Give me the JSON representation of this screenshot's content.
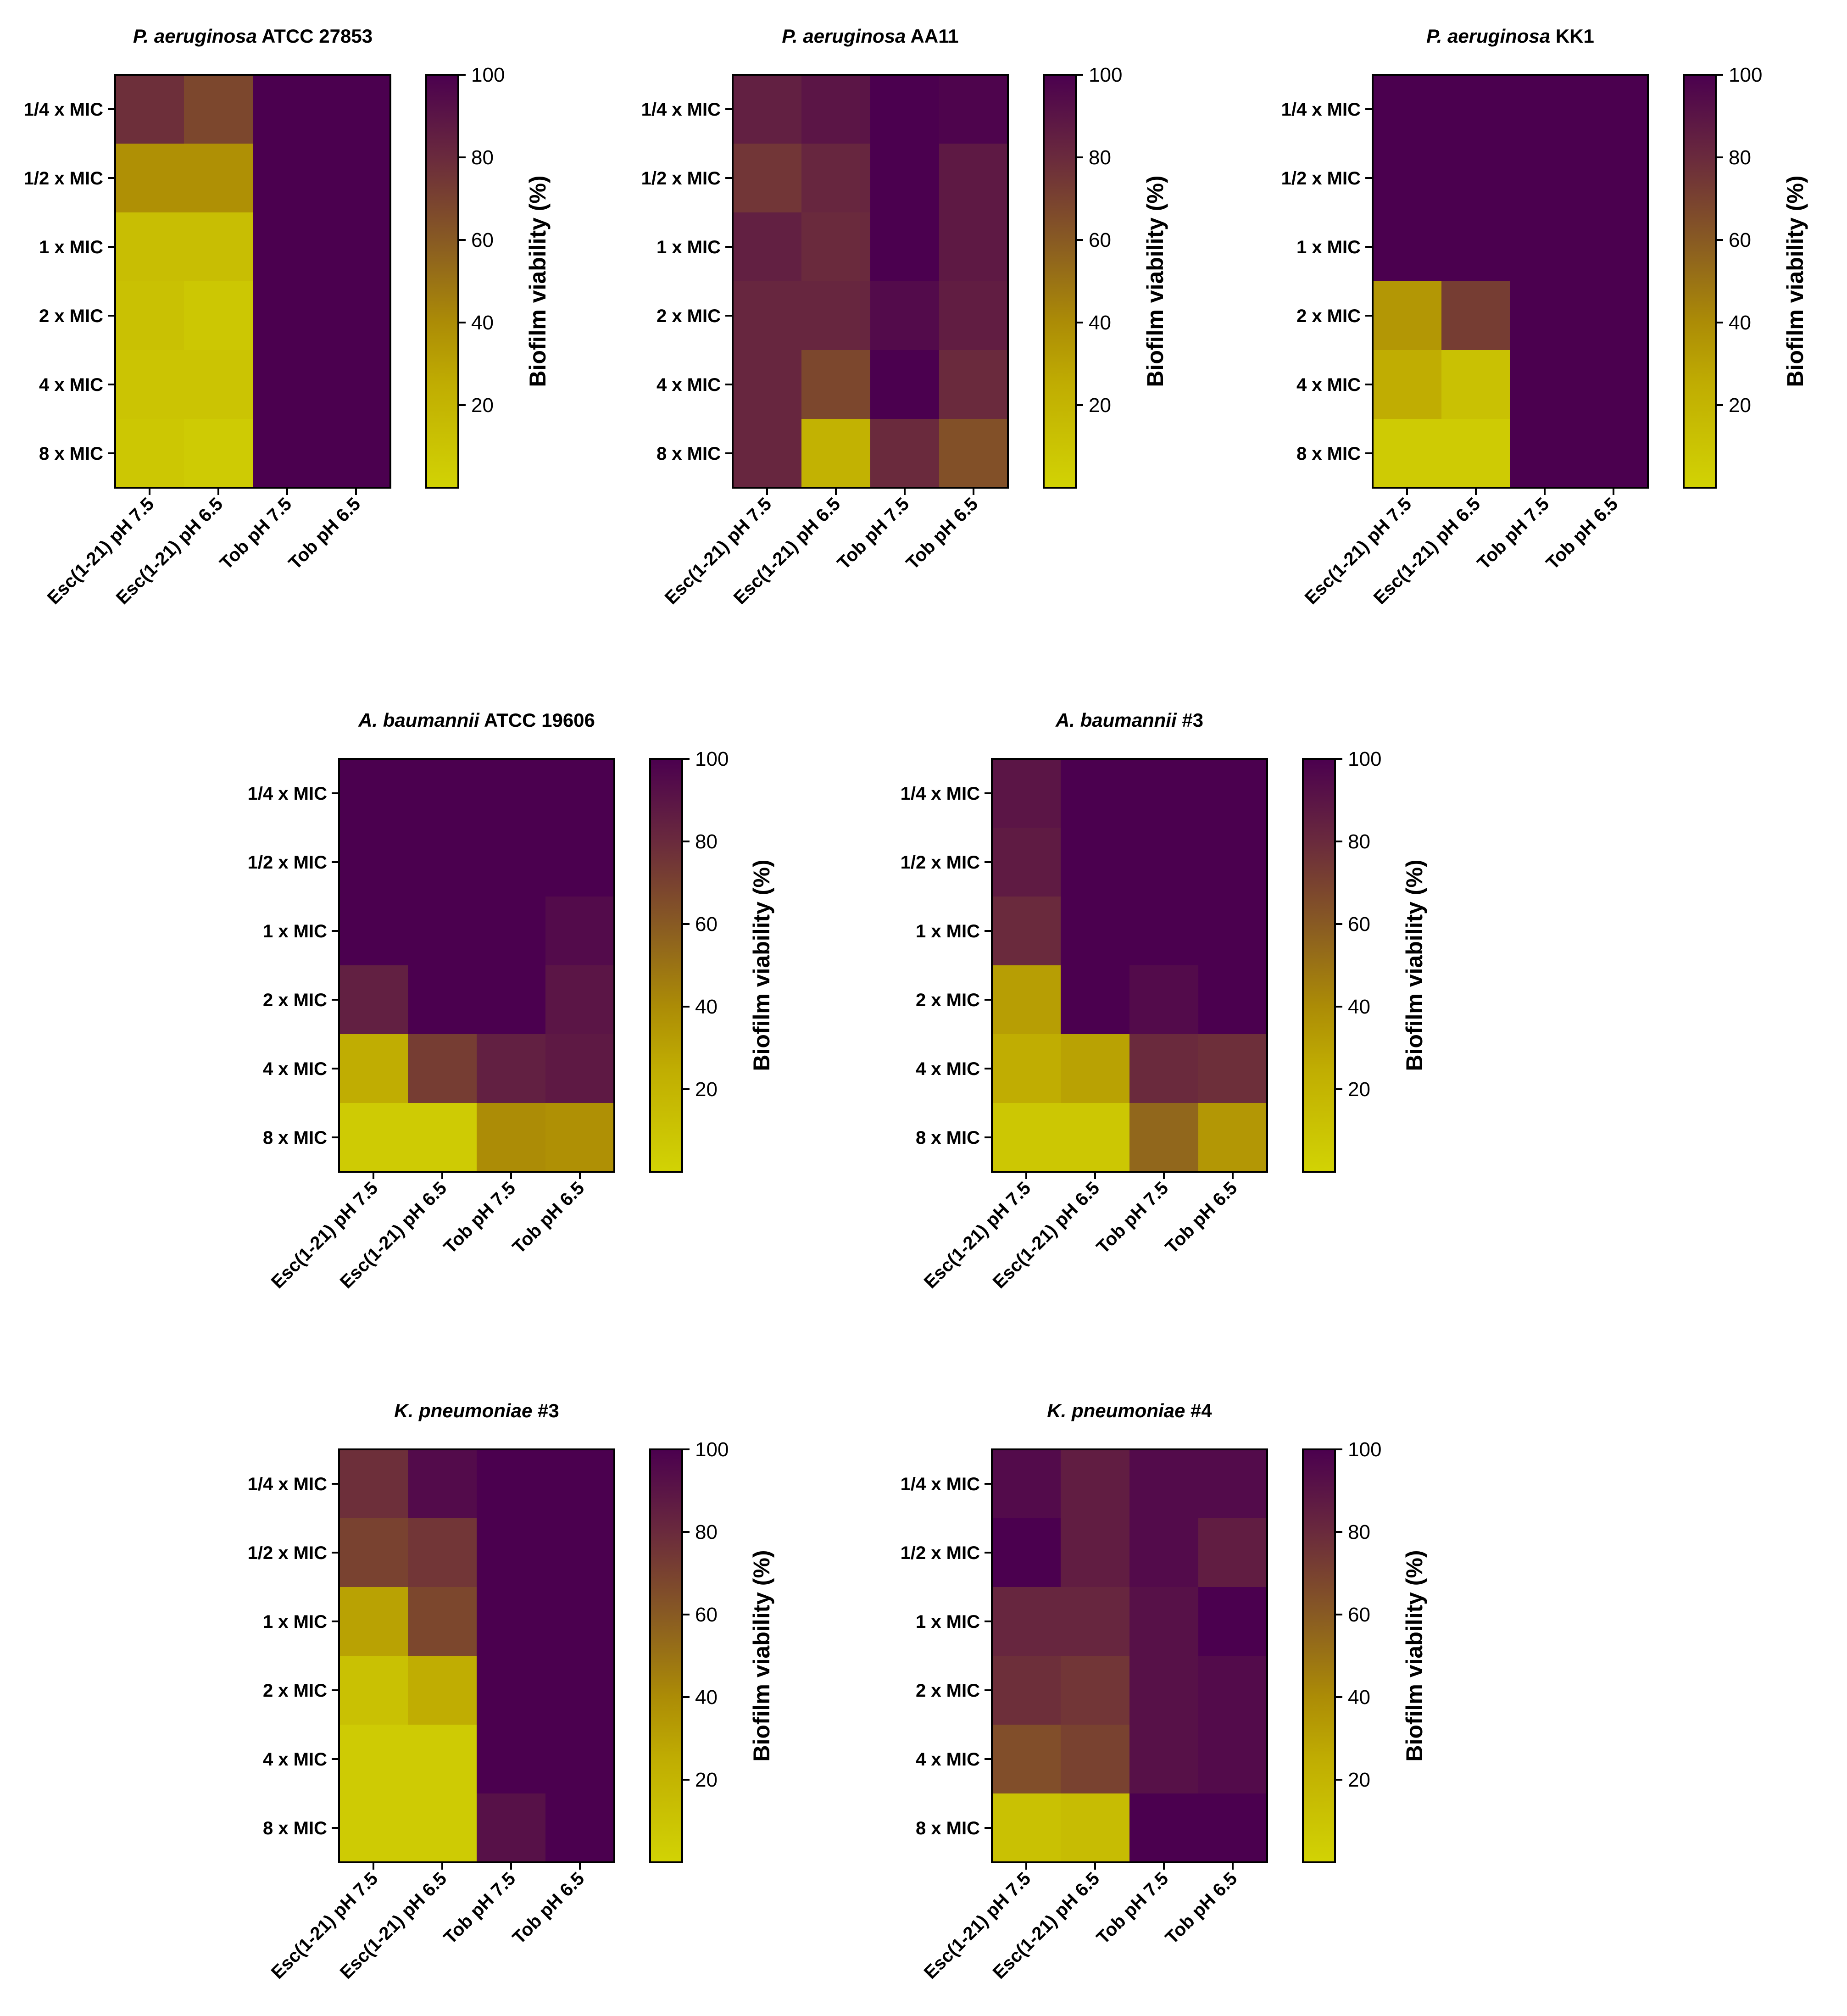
{
  "chart_data": [
    {
      "type": "heatmap",
      "title_italic": "P. aeruginosa",
      "title_rest": " ATCC 27853",
      "rows": [
        "1/4 x MIC",
        "1/2 x MIC",
        "1 x MIC",
        "2 x MIC",
        "4 x MIC",
        "8 x MIC"
      ],
      "columns": [
        "Esc(1-21) pH 7.5",
        "Esc(1-21) pH 6.5",
        "Tob pH 7.5",
        "Tob pH 6.5"
      ],
      "values": [
        [
          78,
          68,
          100,
          100
        ],
        [
          38,
          38,
          100,
          100
        ],
        [
          14,
          14,
          100,
          100
        ],
        [
          12,
          8,
          100,
          100
        ],
        [
          10,
          10,
          100,
          100
        ],
        [
          8,
          5,
          100,
          100
        ]
      ],
      "colorbar": {
        "label": "Biofilm viability (%)",
        "ticks": [
          20,
          40,
          60,
          80,
          100
        ],
        "range": [
          0,
          100
        ]
      }
    },
    {
      "type": "heatmap",
      "title_italic": "P. aeruginosa",
      "title_rest": " AA11",
      "rows": [
        "1/4 x MIC",
        "1/2 x MIC",
        "1 x MIC",
        "2 x MIC",
        "4 x MIC",
        "8 x MIC"
      ],
      "columns": [
        "Esc(1-21) pH 7.5",
        "Esc(1-21) pH 6.5",
        "Tob pH 7.5",
        "Tob pH 6.5"
      ],
      "values": [
        [
          85,
          90,
          100,
          98
        ],
        [
          75,
          82,
          100,
          88
        ],
        [
          85,
          80,
          100,
          88
        ],
        [
          82,
          82,
          95,
          86
        ],
        [
          82,
          68,
          100,
          80
        ],
        [
          82,
          22,
          80,
          64
        ]
      ],
      "colorbar": {
        "label": "Biofilm viability (%)",
        "ticks": [
          20,
          40,
          60,
          80,
          100
        ],
        "range": [
          0,
          100
        ]
      }
    },
    {
      "type": "heatmap",
      "title_italic": "P. aeruginosa",
      "title_rest": " KK1",
      "rows": [
        "1/4 x MIC",
        "1/2 x MIC",
        "1 x MIC",
        "2 x MIC",
        "4 x MIC",
        "8 x MIC"
      ],
      "columns": [
        "Esc(1-21) pH 7.5",
        "Esc(1-21) pH 6.5",
        "Tob pH 7.5",
        "Tob pH 6.5"
      ],
      "values": [
        [
          100,
          100,
          100,
          100
        ],
        [
          100,
          100,
          100,
          100
        ],
        [
          100,
          100,
          100,
          100
        ],
        [
          35,
          72,
          100,
          100
        ],
        [
          25,
          12,
          100,
          100
        ],
        [
          5,
          5,
          100,
          100
        ]
      ],
      "colorbar": {
        "label": "Biofilm viability (%)",
        "ticks": [
          20,
          40,
          60,
          80,
          100
        ],
        "range": [
          0,
          100
        ]
      }
    },
    {
      "type": "heatmap",
      "title_italic": "A. baumannii",
      "title_rest": " ATCC 19606",
      "rows": [
        "1/4 x MIC",
        "1/2 x MIC",
        "1 x MIC",
        "2 x MIC",
        "4 x MIC",
        "8 x MIC"
      ],
      "columns": [
        "Esc(1-21) pH 7.5",
        "Esc(1-21) pH 6.5",
        "Tob pH 7.5",
        "Tob pH 6.5"
      ],
      "values": [
        [
          100,
          100,
          100,
          100
        ],
        [
          100,
          100,
          100,
          100
        ],
        [
          100,
          100,
          100,
          95
        ],
        [
          85,
          100,
          100,
          90
        ],
        [
          25,
          72,
          85,
          88
        ],
        [
          5,
          5,
          40,
          38
        ]
      ],
      "colorbar": {
        "label": "Biofilm viability (%)",
        "ticks": [
          20,
          40,
          60,
          80,
          100
        ],
        "range": [
          0,
          100
        ]
      }
    },
    {
      "type": "heatmap",
      "title_italic": "A. baumannii",
      "title_rest": " #3",
      "rows": [
        "1/4 x MIC",
        "1/2 x MIC",
        "1 x MIC",
        "2 x MIC",
        "4 x MIC",
        "8 x MIC"
      ],
      "columns": [
        "Esc(1-21) pH 7.5",
        "Esc(1-21) pH 6.5",
        "Tob pH 7.5",
        "Tob pH 6.5"
      ],
      "values": [
        [
          90,
          100,
          100,
          100
        ],
        [
          87,
          100,
          100,
          100
        ],
        [
          80,
          100,
          100,
          100
        ],
        [
          32,
          100,
          95,
          100
        ],
        [
          25,
          30,
          80,
          78
        ],
        [
          8,
          8,
          55,
          35
        ]
      ],
      "colorbar": {
        "label": "Biofilm viability (%)",
        "ticks": [
          20,
          40,
          60,
          80,
          100
        ],
        "range": [
          0,
          100
        ]
      }
    },
    {
      "type": "heatmap",
      "title_italic": "K. pneumoniae",
      "title_rest": " #3",
      "rows": [
        "1/4 x MIC",
        "1/2 x MIC",
        "1 x MIC",
        "2 x MIC",
        "4 x MIC",
        "8 x MIC"
      ],
      "columns": [
        "Esc(1-21) pH 7.5",
        "Esc(1-21) pH 6.5",
        "Tob pH 7.5",
        "Tob pH 6.5"
      ],
      "values": [
        [
          78,
          95,
          100,
          100
        ],
        [
          70,
          75,
          100,
          100
        ],
        [
          30,
          68,
          100,
          100
        ],
        [
          12,
          25,
          100,
          100
        ],
        [
          5,
          5,
          100,
          100
        ],
        [
          5,
          5,
          92,
          100
        ]
      ],
      "colorbar": {
        "label": "Biofilm viability (%)",
        "ticks": [
          20,
          40,
          60,
          80,
          100
        ],
        "range": [
          0,
          100
        ]
      }
    },
    {
      "type": "heatmap",
      "title_italic": "K. pneumoniae",
      "title_rest": " #4",
      "rows": [
        "1/4 x MIC",
        "1/2 x MIC",
        "1 x MIC",
        "2 x MIC",
        "4 x MIC",
        "8 x MIC"
      ],
      "columns": [
        "Esc(1-21) pH 7.5",
        "Esc(1-21) pH 6.5",
        "Tob pH 7.5",
        "Tob pH 6.5"
      ],
      "values": [
        [
          95,
          86,
          95,
          95
        ],
        [
          100,
          86,
          95,
          86
        ],
        [
          82,
          82,
          92,
          100
        ],
        [
          78,
          75,
          92,
          95
        ],
        [
          65,
          70,
          92,
          95
        ],
        [
          12,
          15,
          100,
          100
        ]
      ],
      "colorbar": {
        "label": "Biofilm viability (%)",
        "ticks": [
          20,
          40,
          60,
          80,
          100
        ],
        "range": [
          0,
          100
        ]
      }
    }
  ]
}
